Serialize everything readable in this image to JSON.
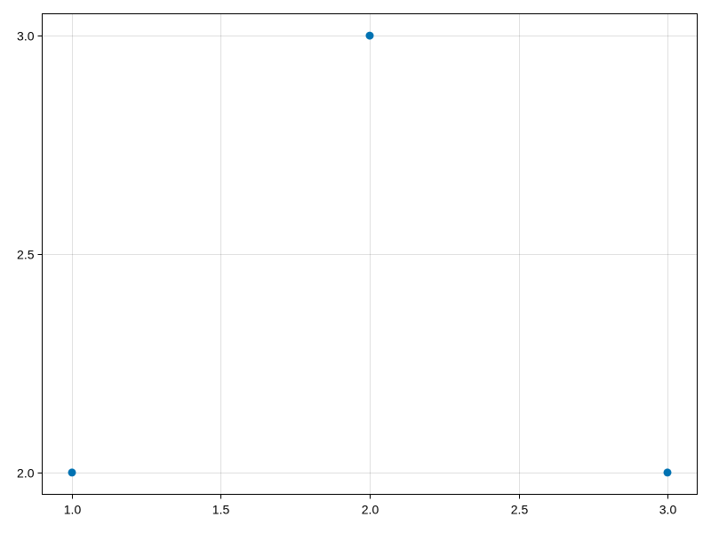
{
  "chart_data": {
    "type": "scatter",
    "title": "",
    "xlabel": "",
    "ylabel": "",
    "x": [
      1.0,
      2.0,
      3.0
    ],
    "y": [
      2.0,
      3.0,
      2.0
    ],
    "xlim": [
      0.9,
      3.1
    ],
    "ylim": [
      1.95,
      3.05
    ],
    "xticks": [
      1.0,
      1.5,
      2.0,
      2.5,
      3.0
    ],
    "xtick_labels": [
      "1.0",
      "1.5",
      "2.0",
      "2.5",
      "3.0"
    ],
    "yticks": [
      2.0,
      2.5,
      3.0
    ],
    "ytick_labels": [
      "2.0",
      "2.5",
      "3.0"
    ],
    "grid": true,
    "marker_color": "#0072B2"
  }
}
